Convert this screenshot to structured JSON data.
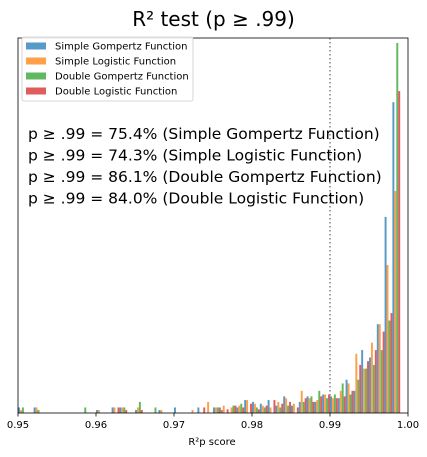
{
  "chart_data": {
    "type": "bar",
    "title": "R² test (p ≥ .99)",
    "xlabel": "R²p score",
    "ylabel": "",
    "xlim": [
      0.95,
      1.0
    ],
    "ylim": [
      0,
      100
    ],
    "xticks": [
      "0.95",
      "0.96",
      "0.97",
      "0.98",
      "0.99",
      "1.00"
    ],
    "grid": false,
    "legend_position": "top-left",
    "threshold_line": {
      "x": 0.99,
      "style": "dotted"
    },
    "bin_width": 0.001,
    "series": [
      {
        "name": "Simple Gompertz Function",
        "color": "#1f77b4",
        "values": [
          [
            0.951,
            1.5
          ],
          [
            0.953,
            1.5
          ],
          [
            0.961,
            0.8
          ],
          [
            0.963,
            1.5
          ],
          [
            0.964,
            1.5
          ],
          [
            0.966,
            0.8
          ],
          [
            0.969,
            0.8
          ],
          [
            0.971,
            1.5
          ],
          [
            0.974,
            1.5
          ],
          [
            0.976,
            1.5
          ],
          [
            0.977,
            0.8
          ],
          [
            0.979,
            1.5
          ],
          [
            0.98,
            3.5
          ],
          [
            0.981,
            3
          ],
          [
            0.982,
            2.5
          ],
          [
            0.983,
            3.5
          ],
          [
            0.984,
            2
          ],
          [
            0.985,
            4.5
          ],
          [
            0.986,
            2
          ],
          [
            0.987,
            3
          ],
          [
            0.988,
            4.5
          ],
          [
            0.989,
            3
          ],
          [
            0.99,
            5
          ],
          [
            0.991,
            4.5
          ],
          [
            0.992,
            4
          ],
          [
            0.993,
            9
          ],
          [
            0.994,
            6
          ],
          [
            0.995,
            17
          ],
          [
            0.996,
            15
          ],
          [
            0.997,
            24
          ],
          [
            0.998,
            53
          ],
          [
            0.999,
            84
          ]
        ]
      },
      {
        "name": "Simple Logistic Function",
        "color": "#ff7f0e",
        "values": [
          [
            0.951,
            0.8
          ],
          [
            0.953,
            1.5
          ],
          [
            0.961,
            0.8
          ],
          [
            0.963,
            1.5
          ],
          [
            0.964,
            1.5
          ],
          [
            0.966,
            1.5
          ],
          [
            0.969,
            0.8
          ],
          [
            0.973,
            0.8
          ],
          [
            0.975,
            3
          ],
          [
            0.976,
            1.5
          ],
          [
            0.977,
            2
          ],
          [
            0.978,
            1.5
          ],
          [
            0.979,
            2
          ],
          [
            0.98,
            3.5
          ],
          [
            0.981,
            2.5
          ],
          [
            0.982,
            2
          ],
          [
            0.983,
            1.5
          ],
          [
            0.984,
            3
          ],
          [
            0.985,
            4
          ],
          [
            0.986,
            2.5
          ],
          [
            0.987,
            6
          ],
          [
            0.988,
            4
          ],
          [
            0.989,
            3.5
          ],
          [
            0.99,
            5
          ],
          [
            0.991,
            4
          ],
          [
            0.992,
            6
          ],
          [
            0.993,
            8
          ],
          [
            0.994,
            16
          ],
          [
            0.995,
            12
          ],
          [
            0.996,
            19
          ],
          [
            0.997,
            24
          ],
          [
            0.998,
            40
          ],
          [
            0.999,
            60
          ]
        ]
      },
      {
        "name": "Double Gompertz Function",
        "color": "#2ca02c",
        "values": [
          [
            0.951,
            1.5
          ],
          [
            0.953,
            0.8
          ],
          [
            0.959,
            1.5
          ],
          [
            0.964,
            1.5
          ],
          [
            0.966,
            3
          ],
          [
            0.968,
            1.5
          ],
          [
            0.976,
            1.5
          ],
          [
            0.978,
            2
          ],
          [
            0.979,
            2.5
          ],
          [
            0.981,
            1.5
          ],
          [
            0.982,
            1.5
          ],
          [
            0.984,
            1.5
          ],
          [
            0.985,
            2
          ],
          [
            0.987,
            3
          ],
          [
            0.988,
            4.5
          ],
          [
            0.989,
            6
          ],
          [
            0.99,
            4
          ],
          [
            0.991,
            5
          ],
          [
            0.992,
            8
          ],
          [
            0.993,
            5
          ],
          [
            0.994,
            9
          ],
          [
            0.995,
            12
          ],
          [
            0.996,
            13
          ],
          [
            0.997,
            17
          ],
          [
            0.998,
            25
          ],
          [
            0.999,
            100
          ]
        ]
      },
      {
        "name": "Double Logistic Function",
        "color": "#d62728",
        "values": [
          [
            0.963,
            1.5
          ],
          [
            0.964,
            0.8
          ],
          [
            0.966,
            0.8
          ],
          [
            0.974,
            1.5
          ],
          [
            0.976,
            1.5
          ],
          [
            0.977,
            1
          ],
          [
            0.978,
            2
          ],
          [
            0.979,
            1.5
          ],
          [
            0.98,
            2.5
          ],
          [
            0.981,
            1
          ],
          [
            0.982,
            2
          ],
          [
            0.983,
            3.5
          ],
          [
            0.984,
            2.5
          ],
          [
            0.985,
            3
          ],
          [
            0.986,
            1.5
          ],
          [
            0.987,
            4
          ],
          [
            0.988,
            3
          ],
          [
            0.989,
            4.5
          ],
          [
            0.99,
            5
          ],
          [
            0.991,
            4
          ],
          [
            0.992,
            4.5
          ],
          [
            0.993,
            6
          ],
          [
            0.994,
            13
          ],
          [
            0.995,
            14
          ],
          [
            0.996,
            17
          ],
          [
            0.997,
            22
          ],
          [
            0.998,
            27
          ],
          [
            0.999,
            87
          ]
        ]
      }
    ],
    "annotations": [
      "p ≥ .99 = 75.4% (Simple Gompertz Function)",
      "p ≥ .99 = 74.3% (Simple Logistic Function)",
      "p ≥ .99 = 86.1% (Double Gompertz Function)",
      "p ≥ .99 = 84.0% (Double Logistic Function)"
    ]
  }
}
